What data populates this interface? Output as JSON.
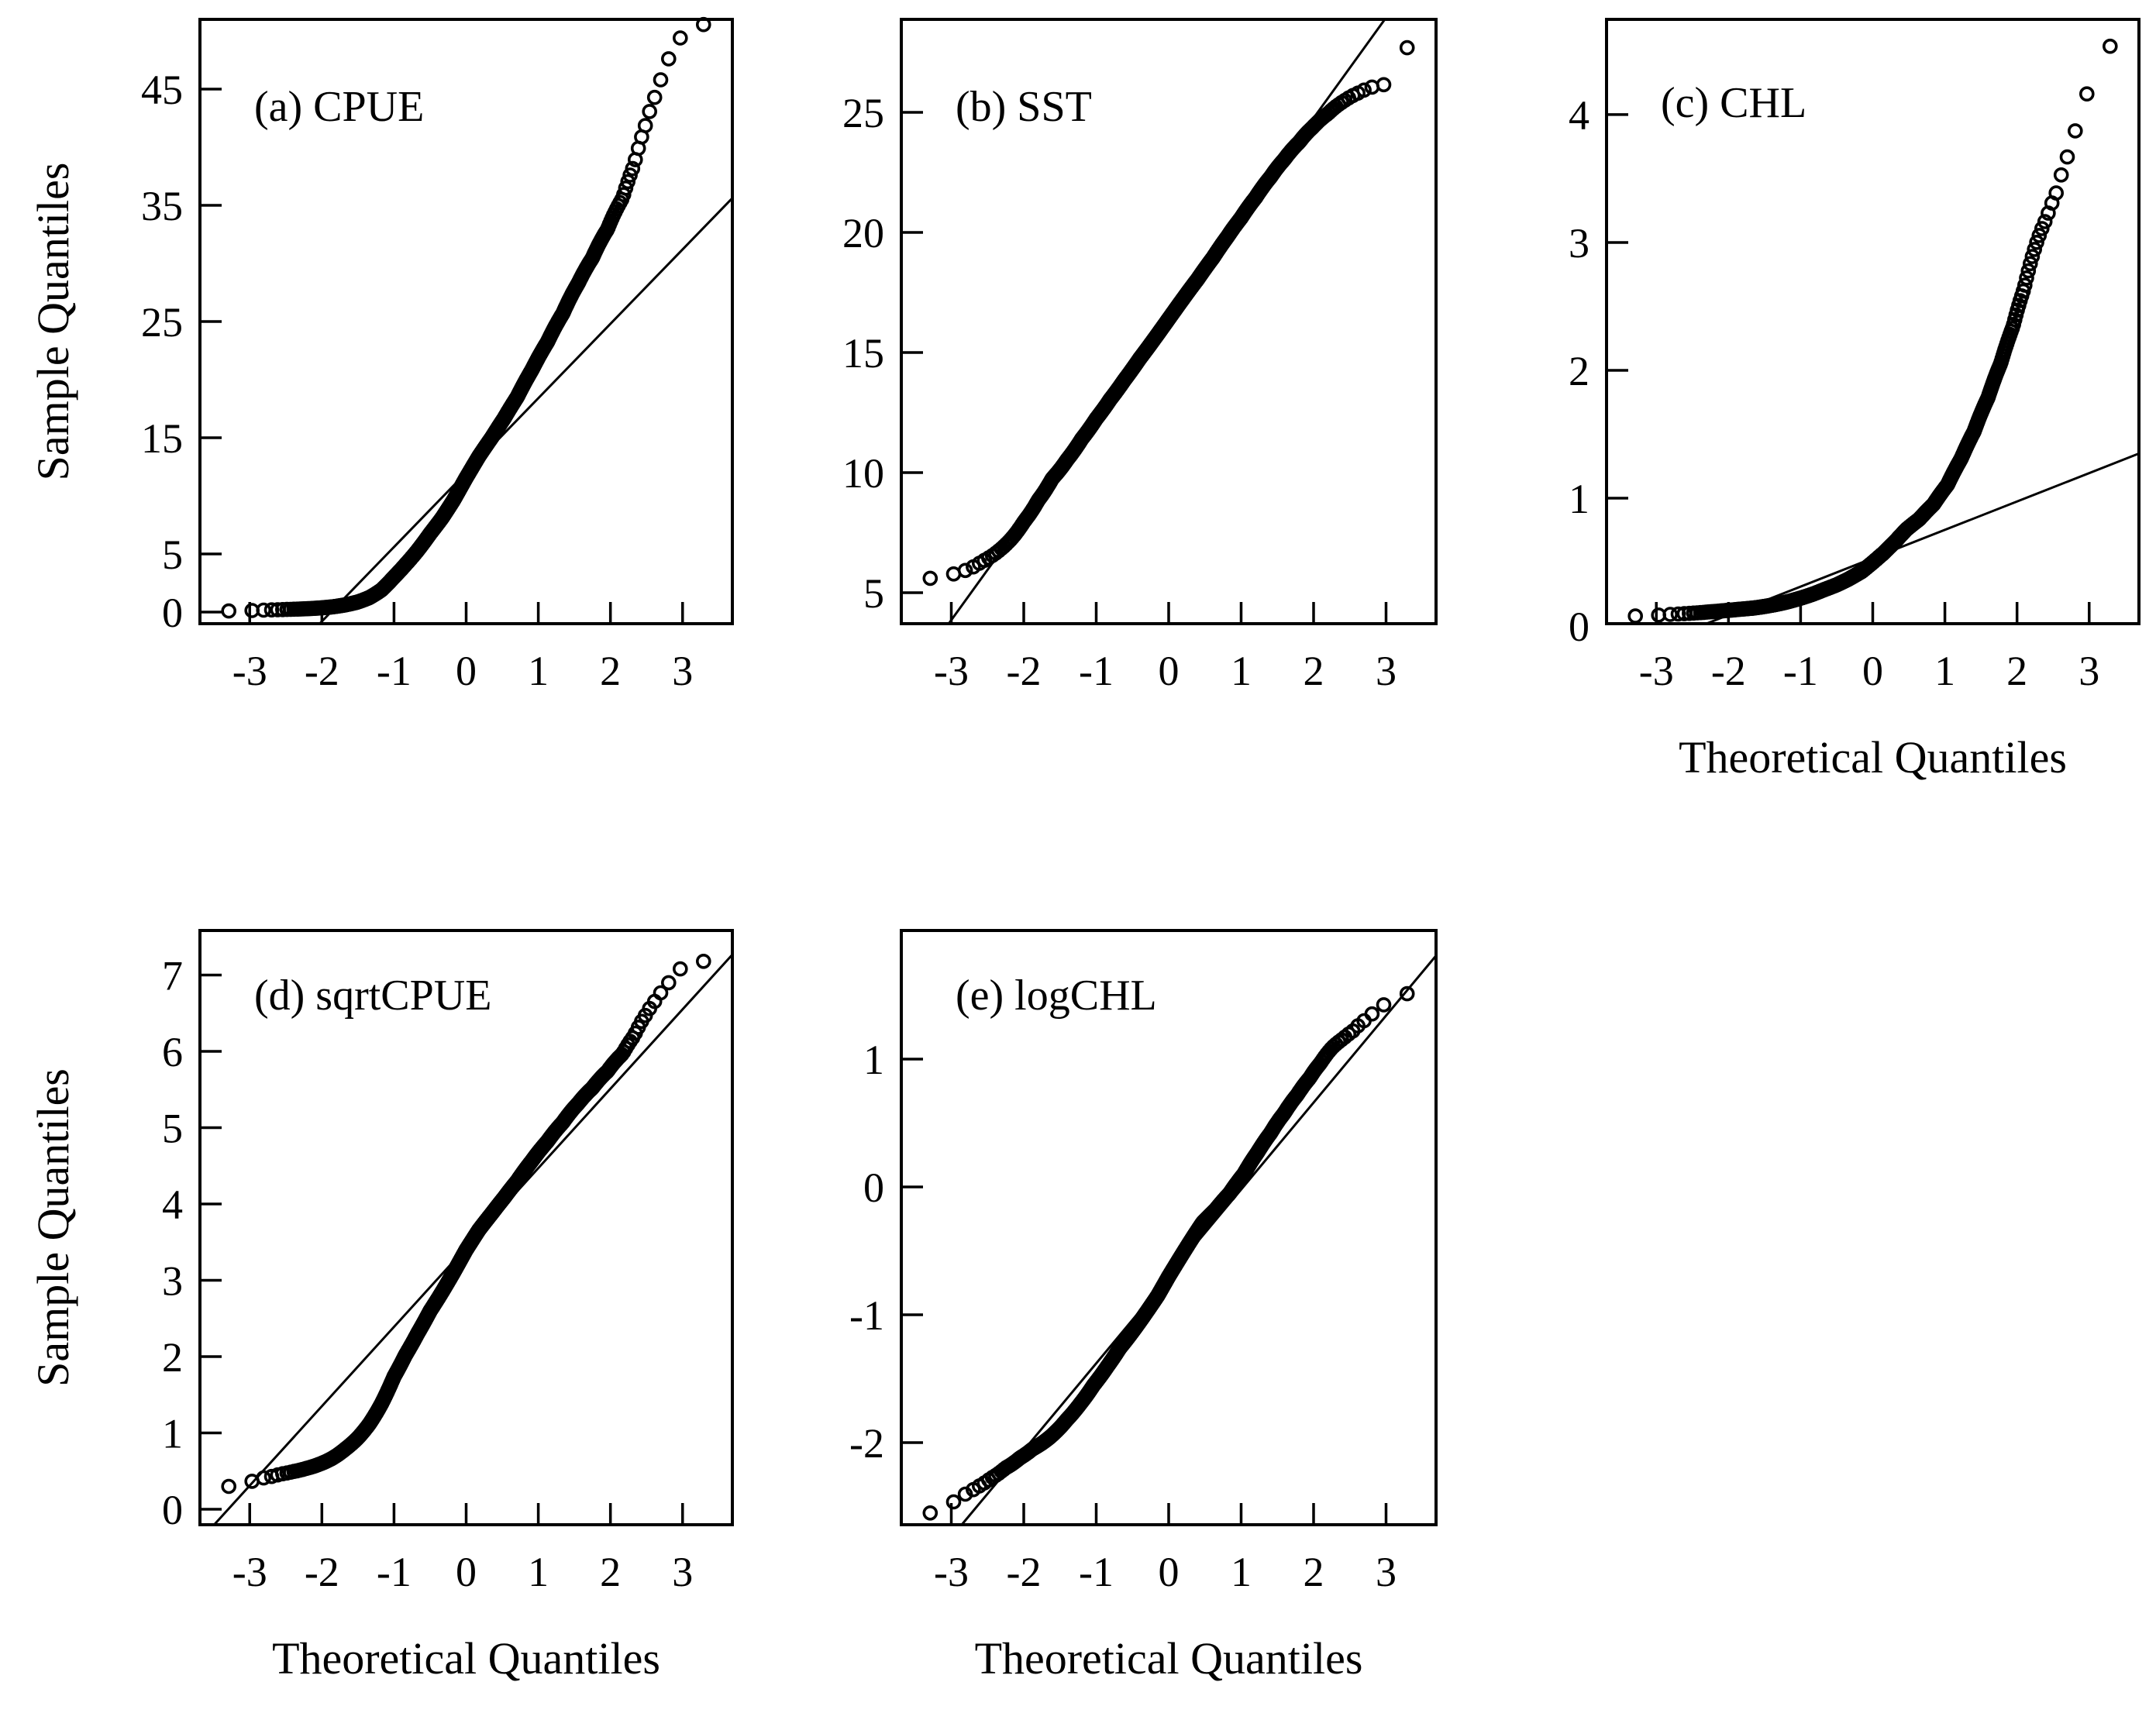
{
  "figure": {
    "background_color": "#ffffff",
    "ink_color": "#000000",
    "x_axis_title": "Theoretical Quantiles",
    "y_axis_title": "Sample Quantiles",
    "marker": "open-circle"
  },
  "chart_data": [
    {
      "id": "a",
      "type": "scatter",
      "title": "(a) CPUE",
      "xlabel": null,
      "ylabel": "Sample Quantiles",
      "xlim": [
        -3.69,
        3.69
      ],
      "ylim": [
        -1.0,
        51.0
      ],
      "xticks": [
        -3,
        -2,
        -1,
        0,
        1,
        2,
        3
      ],
      "yticks": [
        0,
        5,
        15,
        25,
        35,
        45
      ],
      "grid": false,
      "n_points": 1000,
      "ref_line": {
        "slope": 6.4,
        "intercept": 12.0,
        "x1": -2.031,
        "y1": -1.0,
        "x2": 3.69,
        "y2": 35.62
      },
      "quantile_anchors": [
        [
          0.0005,
          0.09
        ],
        [
          0.002,
          0.16
        ],
        [
          0.005,
          0.21
        ],
        [
          0.009,
          0.25
        ],
        [
          0.014,
          0.29
        ],
        [
          0.021,
          0.35
        ],
        [
          0.032,
          0.45
        ],
        [
          0.047,
          0.62
        ],
        [
          0.066,
          0.86
        ],
        [
          0.09,
          1.25
        ],
        [
          0.12,
          1.9
        ],
        [
          0.159,
          3.03
        ],
        [
          0.2,
          4.08
        ],
        [
          0.25,
          5.29
        ],
        [
          0.309,
          6.76
        ],
        [
          0.37,
          8.12
        ],
        [
          0.43,
          9.61
        ],
        [
          0.5,
          11.56
        ],
        [
          0.57,
          13.4
        ],
        [
          0.64,
          15.05
        ],
        [
          0.7,
          16.65
        ],
        [
          0.76,
          18.49
        ],
        [
          0.82,
          20.88
        ],
        [
          0.87,
          23.23
        ],
        [
          0.91,
          25.7
        ],
        [
          0.94,
          28.3
        ],
        [
          0.96,
          30.47
        ],
        [
          0.975,
          32.95
        ],
        [
          0.985,
          35.64
        ],
        [
          0.99,
          38.44
        ],
        [
          0.9935,
          41.86
        ],
        [
          0.996,
          44.89
        ],
        [
          0.9975,
          47.61
        ],
        [
          0.9985,
          49.4
        ],
        [
          0.9993,
          50.3
        ],
        [
          0.9997,
          50.8
        ]
      ]
    },
    {
      "id": "b",
      "type": "scatter",
      "title": "(b) SST",
      "xlabel": null,
      "ylabel": null,
      "xlim": [
        -3.69,
        3.69
      ],
      "ylim": [
        3.71,
        28.87
      ],
      "xticks": [
        -3,
        -2,
        -1,
        0,
        1,
        2,
        3
      ],
      "yticks": [
        5,
        10,
        15,
        20,
        25
      ],
      "grid": false,
      "n_points": 1000,
      "ref_line": {
        "slope": 4.18,
        "intercept": 16.4,
        "x1": -3.036,
        "y1": 3.71,
        "x2": 2.983,
        "y2": 28.87
      },
      "quantile_anchors": [
        [
          0.0005,
          5.6
        ],
        [
          0.0015,
          5.78
        ],
        [
          0.003,
          6.0
        ],
        [
          0.005,
          6.3
        ],
        [
          0.009,
          6.7
        ],
        [
          0.0139,
          7.15
        ],
        [
          0.0228,
          7.95
        ],
        [
          0.0359,
          8.85
        ],
        [
          0.054,
          9.75
        ],
        [
          0.081,
          10.55
        ],
        [
          0.115,
          11.4
        ],
        [
          0.159,
          12.25
        ],
        [
          0.21,
          13.05
        ],
        [
          0.27,
          13.85
        ],
        [
          0.345,
          14.75
        ],
        [
          0.42,
          15.55
        ],
        [
          0.5,
          16.4
        ],
        [
          0.58,
          17.25
        ],
        [
          0.655,
          18.05
        ],
        [
          0.73,
          18.95
        ],
        [
          0.79,
          19.8
        ],
        [
          0.841,
          20.6
        ],
        [
          0.885,
          21.45
        ],
        [
          0.92,
          22.3
        ],
        [
          0.945,
          23.05
        ],
        [
          0.964,
          23.75
        ],
        [
          0.977,
          24.4
        ],
        [
          0.9861,
          24.95
        ],
        [
          0.992,
          25.45
        ],
        [
          0.9955,
          25.8
        ],
        [
          0.9975,
          26.05
        ],
        [
          0.9985,
          26.15
        ],
        [
          0.9991,
          27.35
        ],
        [
          0.99975,
          27.9
        ]
      ]
    },
    {
      "id": "c",
      "type": "scatter",
      "title": "(c) CHL",
      "xlabel": "Theoretical Quantiles",
      "ylabel": null,
      "xlim": [
        -3.69,
        3.69
      ],
      "ylim": [
        0.018,
        4.745
      ],
      "xticks": [
        -3,
        -2,
        -1,
        0,
        1,
        2,
        3
      ],
      "yticks": [
        0,
        1,
        2,
        3,
        4
      ],
      "grid": false,
      "n_points": 1000,
      "ref_line": {
        "slope": 0.222,
        "intercept": 0.53,
        "x1": -2.306,
        "y1": 0.018,
        "x2": 3.69,
        "y2": 1.349
      },
      "quantile_anchors": [
        [
          0.0005,
          0.078
        ],
        [
          0.002,
          0.089
        ],
        [
          0.004,
          0.095
        ],
        [
          0.007,
          0.102
        ],
        [
          0.012,
          0.111
        ],
        [
          0.02,
          0.12
        ],
        [
          0.03,
          0.129
        ],
        [
          0.05,
          0.141
        ],
        [
          0.08,
          0.162
        ],
        [
          0.11,
          0.183
        ],
        [
          0.15,
          0.212
        ],
        [
          0.2,
          0.247
        ],
        [
          0.25,
          0.284
        ],
        [
          0.31,
          0.323
        ],
        [
          0.37,
          0.368
        ],
        [
          0.44,
          0.427
        ],
        [
          0.5,
          0.497
        ],
        [
          0.56,
          0.571
        ],
        [
          0.62,
          0.657
        ],
        [
          0.68,
          0.756
        ],
        [
          0.74,
          0.835
        ],
        [
          0.8,
          0.951
        ],
        [
          0.85,
          1.105
        ],
        [
          0.89,
          1.31
        ],
        [
          0.92,
          1.522
        ],
        [
          0.945,
          1.786
        ],
        [
          0.962,
          2.054
        ],
        [
          0.974,
          2.34
        ],
        [
          0.982,
          2.638
        ],
        [
          0.988,
          2.974
        ],
        [
          0.992,
          3.19
        ],
        [
          0.9945,
          3.387
        ],
        [
          0.9965,
          3.669
        ],
        [
          0.998,
          3.975
        ],
        [
          0.999,
          4.349
        ],
        [
          0.9996,
          4.572
        ]
      ]
    },
    {
      "id": "d",
      "type": "scatter",
      "title": "(d) sqrtCPUE",
      "xlabel": "Theoretical Quantiles",
      "ylabel": "Sample Quantiles",
      "xlim": [
        -3.69,
        3.69
      ],
      "ylim": [
        -0.203,
        7.584
      ],
      "xticks": [
        -3,
        -2,
        -1,
        0,
        1,
        2,
        3
      ],
      "yticks": [
        0,
        1,
        2,
        3,
        4,
        5,
        6,
        7
      ],
      "grid": false,
      "n_points": 1000,
      "ref_line": {
        "slope": 1.04,
        "intercept": 3.43,
        "x1": -3.493,
        "y1": -0.203,
        "x2": 3.69,
        "y2": 7.268
      },
      "quantile_anchors": [
        [
          0.0005,
          0.3
        ],
        [
          0.002,
          0.4
        ],
        [
          0.005,
          0.46
        ],
        [
          0.009,
          0.5
        ],
        [
          0.014,
          0.54
        ],
        [
          0.021,
          0.59
        ],
        [
          0.032,
          0.67
        ],
        [
          0.047,
          0.79
        ],
        [
          0.066,
          0.93
        ],
        [
          0.09,
          1.12
        ],
        [
          0.12,
          1.38
        ],
        [
          0.159,
          1.74
        ],
        [
          0.2,
          2.02
        ],
        [
          0.25,
          2.3
        ],
        [
          0.309,
          2.6
        ],
        [
          0.37,
          2.85
        ],
        [
          0.43,
          3.1
        ],
        [
          0.5,
          3.4
        ],
        [
          0.57,
          3.66
        ],
        [
          0.64,
          3.88
        ],
        [
          0.7,
          4.08
        ],
        [
          0.76,
          4.3
        ],
        [
          0.82,
          4.57
        ],
        [
          0.87,
          4.82
        ],
        [
          0.91,
          5.07
        ],
        [
          0.94,
          5.32
        ],
        [
          0.96,
          5.52
        ],
        [
          0.975,
          5.74
        ],
        [
          0.985,
          5.97
        ],
        [
          0.99,
          6.2
        ],
        [
          0.9935,
          6.47
        ],
        [
          0.996,
          6.7
        ],
        [
          0.9975,
          6.9
        ],
        [
          0.9985,
          7.08
        ],
        [
          0.9993,
          7.16
        ],
        [
          0.9997,
          7.2
        ]
      ]
    },
    {
      "id": "e",
      "type": "scatter",
      "title": "(e) logCHL",
      "xlabel": "Theoretical Quantiles",
      "ylabel": null,
      "xlim": [
        -3.69,
        3.69
      ],
      "ylim": [
        -2.642,
        2.006
      ],
      "xticks": [
        -3,
        -2,
        -1,
        0,
        1,
        2,
        3
      ],
      "yticks": [
        -2,
        -1,
        0,
        1
      ],
      "grid": false,
      "n_points": 1000,
      "ref_line": {
        "slope": 0.68,
        "intercept": -0.7,
        "x1": -2.856,
        "y1": -2.642,
        "x2": 3.69,
        "y2": 1.809
      },
      "quantile_anchors": [
        [
          0.0005,
          -2.55
        ],
        [
          0.002,
          -2.42
        ],
        [
          0.004,
          -2.35
        ],
        [
          0.007,
          -2.28
        ],
        [
          0.012,
          -2.2
        ],
        [
          0.02,
          -2.12
        ],
        [
          0.03,
          -2.05
        ],
        [
          0.05,
          -1.96
        ],
        [
          0.08,
          -1.82
        ],
        [
          0.11,
          -1.7
        ],
        [
          0.15,
          -1.55
        ],
        [
          0.2,
          -1.4
        ],
        [
          0.25,
          -1.26
        ],
        [
          0.31,
          -1.13
        ],
        [
          0.37,
          -1.0
        ],
        [
          0.44,
          -0.85
        ],
        [
          0.5,
          -0.7
        ],
        [
          0.56,
          -0.56
        ],
        [
          0.62,
          -0.42
        ],
        [
          0.68,
          -0.28
        ],
        [
          0.74,
          -0.18
        ],
        [
          0.8,
          -0.05
        ],
        [
          0.85,
          0.1
        ],
        [
          0.89,
          0.27
        ],
        [
          0.92,
          0.42
        ],
        [
          0.945,
          0.58
        ],
        [
          0.962,
          0.72
        ],
        [
          0.974,
          0.85
        ],
        [
          0.982,
          0.97
        ],
        [
          0.988,
          1.09
        ],
        [
          0.992,
          1.16
        ],
        [
          0.9945,
          1.22
        ],
        [
          0.9965,
          1.3
        ],
        [
          0.998,
          1.38
        ],
        [
          0.999,
          1.47
        ],
        [
          0.9996,
          1.52
        ]
      ]
    }
  ]
}
